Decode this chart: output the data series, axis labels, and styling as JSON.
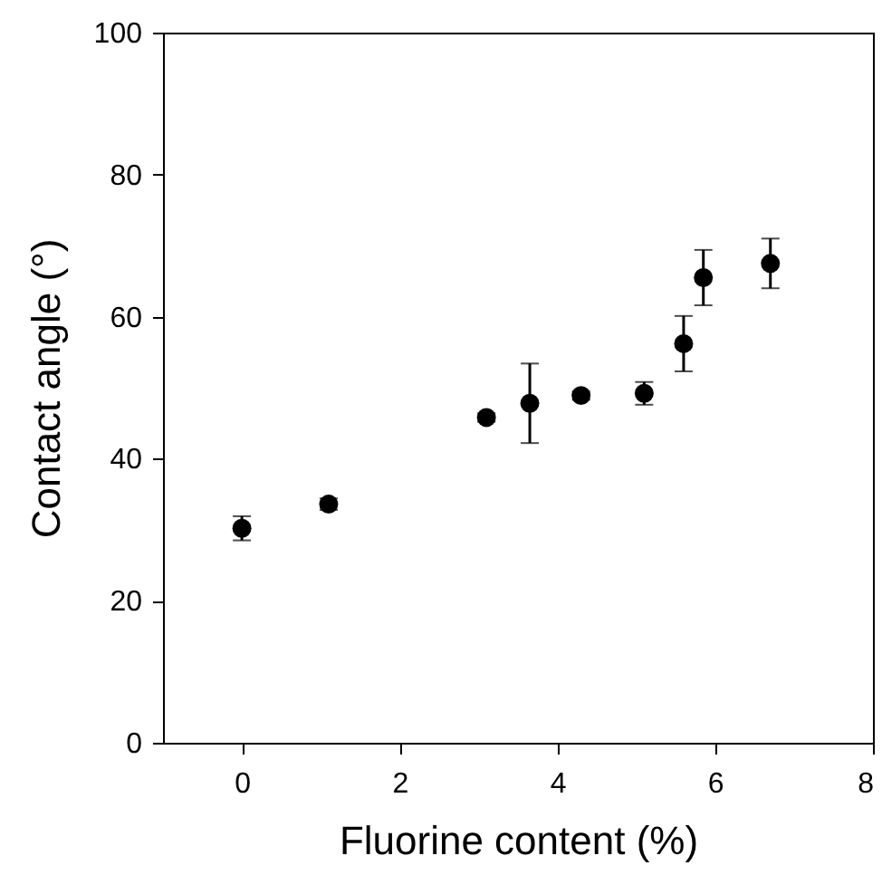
{
  "chart_data": {
    "type": "scatter",
    "xlabel": "Fluorine content (%)",
    "ylabel": "Contact angle (°)",
    "x": [
      0,
      1.1,
      3.1,
      3.65,
      4.3,
      5.1,
      5.6,
      5.85,
      6.7
    ],
    "series": [
      {
        "color": "#000000",
        "values": [
          30.2,
          33.6,
          45.8,
          47.8,
          48.9,
          49.2,
          56.2,
          65.5,
          67.5
        ],
        "errors": [
          1.7,
          0.8,
          0.6,
          5.6,
          0.6,
          1.6,
          3.9,
          3.9,
          3.5
        ]
      }
    ],
    "marker": "circle",
    "xlim": [
      -1,
      8
    ],
    "xticks": [
      0,
      2,
      4,
      6,
      8
    ],
    "ylim": [
      0,
      100
    ],
    "yticks": [
      0,
      20,
      40,
      60,
      80,
      100
    ],
    "grid": false
  }
}
